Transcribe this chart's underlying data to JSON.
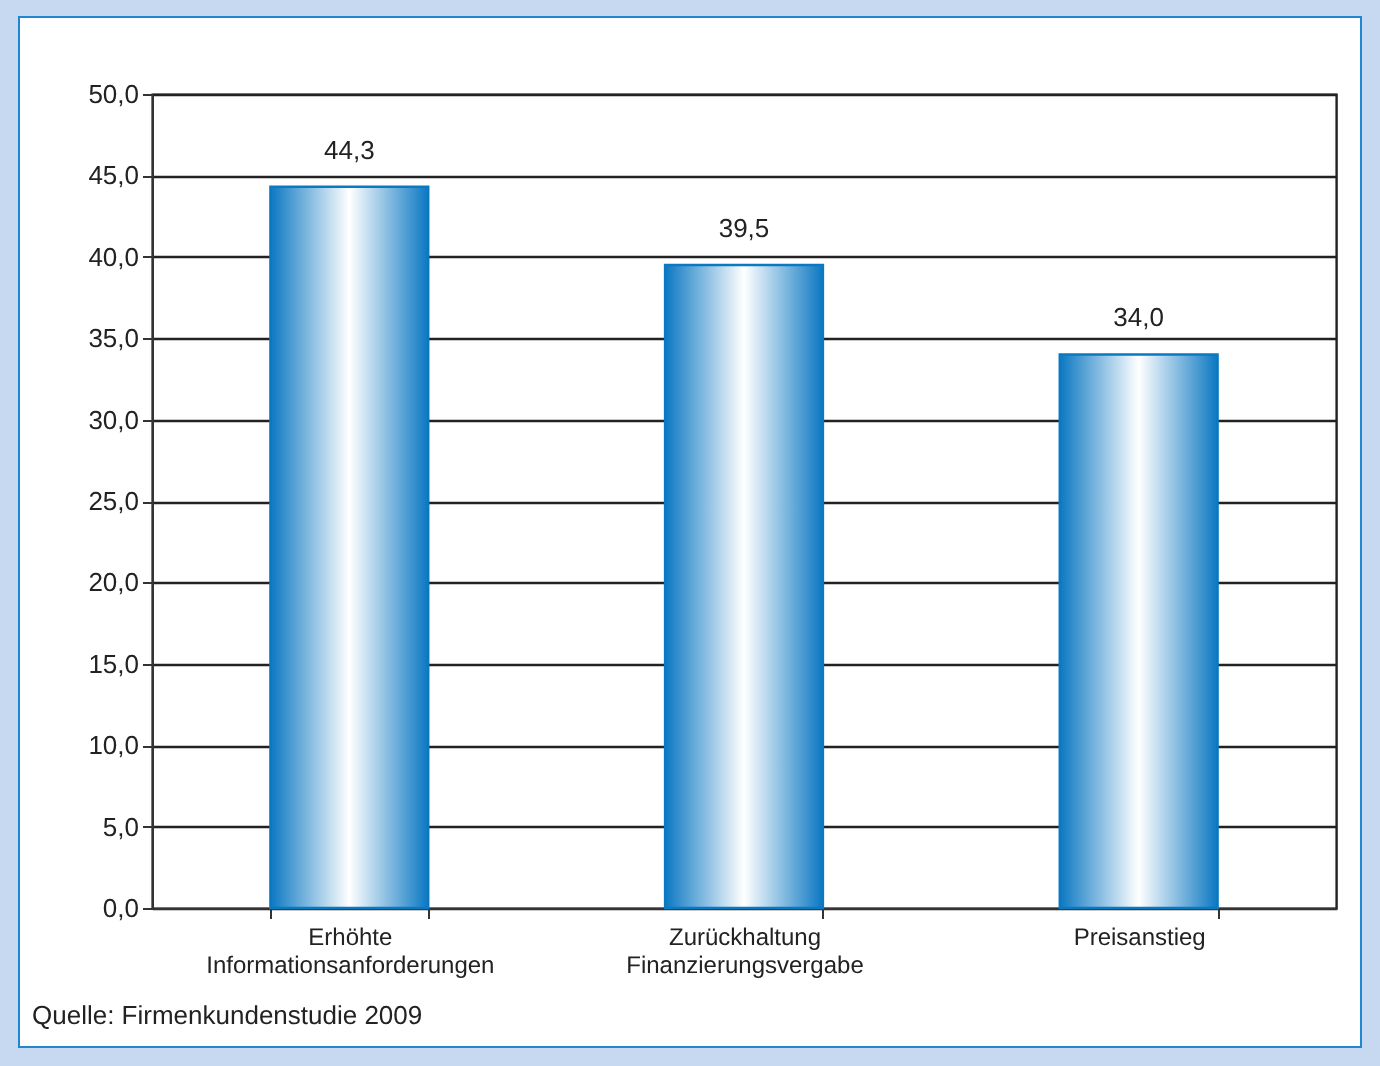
{
  "chart_data": {
    "type": "bar",
    "categories": [
      "Erhöhte\nInformationsanforderungen",
      "Zurückhaltung\nFinanzierungsvergabe",
      "Preisanstieg"
    ],
    "values": [
      44.3,
      39.5,
      34.0
    ],
    "color": "#0b78c2",
    "value_labels": [
      "44,3",
      "39,5",
      "34,0"
    ],
    "ylim": [
      0,
      50
    ],
    "yticks": [
      {
        "value": 0,
        "label": "0,0"
      },
      {
        "value": 5,
        "label": "5,0"
      },
      {
        "value": 10,
        "label": "10,0"
      },
      {
        "value": 15,
        "label": "15,0"
      },
      {
        "value": 20,
        "label": "20,0"
      },
      {
        "value": 25,
        "label": "25,0"
      },
      {
        "value": 30,
        "label": "30,0"
      },
      {
        "value": 35,
        "label": "35,0"
      },
      {
        "value": 40,
        "label": "40,0"
      },
      {
        "value": 45,
        "label": "45,0"
      },
      {
        "value": 50,
        "label": "50,0"
      }
    ],
    "grid": "y",
    "annotations": [
      "Quelle: Firmenkundenstudie 2009"
    ]
  }
}
